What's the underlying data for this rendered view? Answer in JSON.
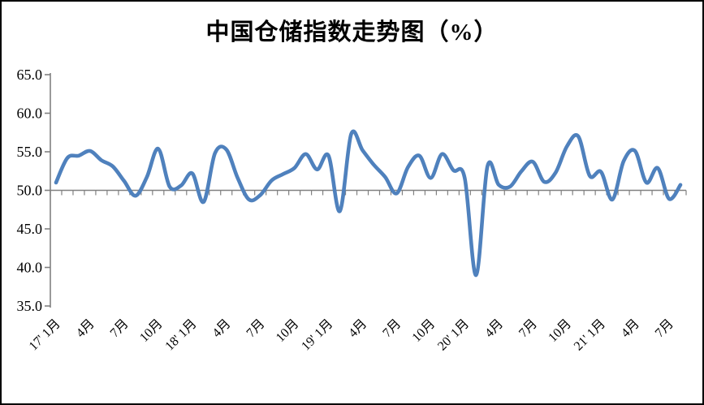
{
  "title": "中国仓储指数走势图（%）",
  "chart_data": {
    "type": "line",
    "title": "中国仓储指数走势图（%）",
    "series_name": "中国仓储指数",
    "unit": "%",
    "categories": [
      "17'1月",
      "17'2月",
      "17'3月",
      "17'4月",
      "17'5月",
      "17'6月",
      "17'7月",
      "17'8月",
      "17'9月",
      "17'10月",
      "17'11月",
      "17'12月",
      "18'1月",
      "18'2月",
      "18'3月",
      "18'4月",
      "18'5月",
      "18'6月",
      "18'7月",
      "18'8月",
      "18'9月",
      "18'10月",
      "18'11月",
      "18'12月",
      "19'1月",
      "19'2月",
      "19'3月",
      "19'4月",
      "19'5月",
      "19'6月",
      "19'7月",
      "19'8月",
      "19'9月",
      "19'10月",
      "19'11月",
      "19'12月",
      "20'1月",
      "20'2月",
      "20'3月",
      "20'4月",
      "20'5月",
      "20'6月",
      "20'7月",
      "20'8月",
      "20'9月",
      "20'10月",
      "20'11月",
      "20'12月",
      "21'1月",
      "21'2月",
      "21'3月",
      "21'4月",
      "21'5月",
      "21'6月",
      "21'7月",
      "21'8月"
    ],
    "values": [
      51.0,
      54.2,
      54.5,
      55.1,
      53.9,
      53.1,
      51.2,
      49.3,
      51.7,
      55.4,
      50.5,
      50.6,
      52.2,
      48.5,
      54.8,
      55.3,
      51.6,
      48.8,
      49.4,
      51.3,
      52.1,
      52.9,
      54.7,
      52.7,
      54.5,
      47.3,
      57.3,
      55.2,
      53.3,
      51.7,
      49.6,
      53.0,
      54.5,
      51.6,
      54.7,
      52.6,
      51.6,
      39.0,
      53.1,
      50.7,
      50.5,
      52.5,
      53.7,
      51.1,
      52.3,
      55.7,
      57.0,
      51.9,
      52.4,
      48.8,
      53.8,
      55.1,
      51.0,
      52.9,
      48.9,
      50.7
    ],
    "x_tick_labels": [
      {
        "text": "17' 1月",
        "month": 0
      },
      {
        "text": "4月",
        "month": 3
      },
      {
        "text": "7月",
        "month": 6
      },
      {
        "text": "10月",
        "month": 9
      },
      {
        "text": "18' 1月",
        "month": 12
      },
      {
        "text": "4月",
        "month": 15
      },
      {
        "text": "7月",
        "month": 18
      },
      {
        "text": "10月",
        "month": 21
      },
      {
        "text": "19' 1月",
        "month": 24
      },
      {
        "text": "4月",
        "month": 27
      },
      {
        "text": "7月",
        "month": 30
      },
      {
        "text": "10月",
        "month": 33
      },
      {
        "text": "20' 1月",
        "month": 36
      },
      {
        "text": "4月",
        "month": 39
      },
      {
        "text": "7月",
        "month": 42
      },
      {
        "text": "10月",
        "month": 45
      },
      {
        "text": "21' 1月",
        "month": 48
      },
      {
        "text": "4月",
        "month": 51
      },
      {
        "text": "7月",
        "month": 54
      }
    ],
    "y_axis": {
      "min": 35,
      "max": 65,
      "step": 5,
      "labels": [
        "65.0",
        "60.0",
        "55.0",
        "50.0",
        "45.0",
        "40.0",
        "35.0"
      ],
      "crosses_at": 50
    },
    "grid": "off",
    "legend": "none",
    "smooth_line": true,
    "colors": {
      "line": "#4F81BD",
      "axis": "#808080",
      "text": "#000000",
      "background": "#FFFFFF",
      "border": "#000000"
    }
  }
}
